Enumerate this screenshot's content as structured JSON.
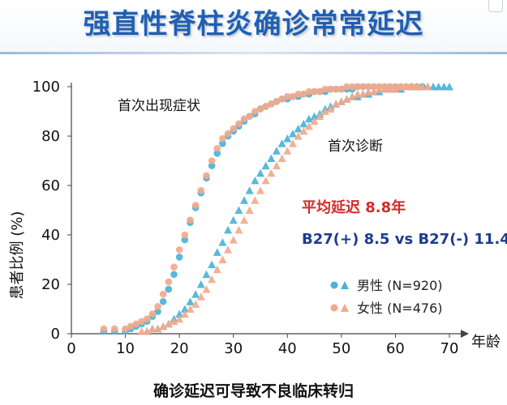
{
  "title": "强直性脊柱炎确诊常常延迟",
  "caption": "确诊延迟可导致不良临床转归",
  "chart_data": {
    "type": "scatter",
    "xlabel": "年龄",
    "ylabel": "患者比例 (%)",
    "xlim": [
      0,
      70
    ],
    "ylim": [
      0,
      100
    ],
    "xticks": [
      0,
      10,
      20,
      30,
      40,
      50,
      60,
      70
    ],
    "yticks": [
      0,
      20,
      40,
      60,
      80,
      100
    ],
    "grid": false,
    "legend": {
      "placement": "bottom-right",
      "entries": [
        "男性 (N=920)",
        "女性 (N=476)"
      ]
    },
    "annotations": {
      "onset": "首次出现症状",
      "diagnosis": "首次诊断",
      "delay": "平均延迟 8.8年",
      "b27": "B27(+) 8.5 vs B27(-) 11.4"
    },
    "colors": {
      "male_onset": "#49b3d8",
      "female_onset": "#f2a98c",
      "male_diagnosis": "#49b3d8",
      "female_diagnosis": "#f2a98c",
      "delay_text": "#d42b2b",
      "b27_text": "#1d3c8f"
    },
    "series": [
      {
        "name": "男性 (N=920)",
        "group": "首次出现症状",
        "marker": "circle",
        "x": [
          6,
          8,
          10,
          11,
          12,
          13,
          14,
          15,
          16,
          17,
          18,
          19,
          20,
          21,
          22,
          23,
          24,
          25,
          26,
          27,
          28,
          29,
          30,
          31,
          32,
          33,
          34,
          35,
          36,
          37,
          38,
          39,
          40,
          41,
          42,
          43,
          44,
          45,
          46,
          47,
          48,
          49,
          50,
          51,
          52,
          53,
          54,
          55,
          56,
          57,
          58,
          59,
          60,
          61,
          62,
          63,
          64,
          65
        ],
        "y": [
          1,
          1,
          1,
          2,
          3,
          4,
          5,
          7,
          9,
          13,
          18,
          24,
          31,
          38,
          45,
          51,
          57,
          63,
          68,
          73,
          77,
          80,
          82,
          84,
          86,
          88,
          89,
          91,
          92,
          93,
          94,
          95,
          95,
          96,
          96,
          97,
          97,
          98,
          98,
          98,
          99,
          99,
          99,
          99,
          99,
          100,
          100,
          100,
          100,
          100,
          100,
          100,
          100,
          100,
          100,
          100,
          100,
          100
        ]
      },
      {
        "name": "女性 (N=476)",
        "group": "首次出现症状",
        "marker": "circle",
        "x": [
          6,
          8,
          10,
          11,
          12,
          13,
          14,
          15,
          16,
          17,
          18,
          19,
          20,
          21,
          22,
          23,
          24,
          25,
          26,
          27,
          28,
          29,
          30,
          31,
          32,
          33,
          34,
          35,
          36,
          37,
          38,
          39,
          40,
          41,
          42,
          43,
          44,
          45,
          46,
          47,
          48,
          49,
          50,
          51,
          52,
          53,
          54,
          55,
          56,
          57,
          58,
          59,
          60,
          61,
          62,
          63,
          64
        ],
        "y": [
          2,
          2,
          2,
          3,
          4,
          5,
          6,
          8,
          11,
          16,
          21,
          27,
          34,
          40,
          46,
          52,
          58,
          64,
          70,
          75,
          79,
          81,
          83,
          85,
          87,
          88,
          90,
          91,
          92,
          93,
          94,
          95,
          96,
          96,
          97,
          97,
          98,
          98,
          98,
          99,
          99,
          99,
          99,
          100,
          100,
          100,
          100,
          100,
          100,
          100,
          100,
          100,
          100,
          100,
          100,
          100,
          100
        ]
      },
      {
        "name": "男性 (N=920)",
        "group": "首次诊断",
        "marker": "triangle",
        "x": [
          14,
          15,
          16,
          17,
          18,
          19,
          20,
          21,
          22,
          23,
          24,
          25,
          26,
          27,
          28,
          29,
          30,
          31,
          32,
          33,
          34,
          35,
          36,
          37,
          38,
          39,
          40,
          41,
          42,
          43,
          44,
          45,
          46,
          47,
          48,
          49,
          50,
          51,
          52,
          53,
          54,
          55,
          56,
          57,
          58,
          59,
          60,
          61,
          62,
          63,
          64,
          65,
          66,
          67,
          68,
          69,
          70
        ],
        "y": [
          1,
          2,
          2,
          3,
          4,
          6,
          8,
          10,
          13,
          16,
          20,
          24,
          28,
          33,
          37,
          42,
          46,
          50,
          54,
          58,
          62,
          65,
          68,
          71,
          74,
          77,
          79,
          81,
          83,
          85,
          87,
          88,
          89,
          91,
          92,
          93,
          94,
          95,
          96,
          96,
          97,
          97,
          98,
          98,
          99,
          99,
          99,
          99,
          100,
          100,
          100,
          100,
          100,
          100,
          100,
          100,
          100
        ]
      },
      {
        "name": "女性 (N=476)",
        "group": "首次诊断",
        "marker": "triangle",
        "x": [
          13,
          14,
          15,
          16,
          17,
          18,
          19,
          20,
          21,
          22,
          23,
          24,
          25,
          26,
          27,
          28,
          29,
          30,
          31,
          32,
          33,
          34,
          35,
          36,
          37,
          38,
          39,
          40,
          41,
          42,
          43,
          44,
          45,
          46,
          47,
          48,
          49,
          50,
          51,
          52,
          53,
          54,
          55,
          56,
          57,
          58,
          59,
          60,
          61,
          62,
          63,
          64,
          65,
          66
        ],
        "y": [
          1,
          1,
          2,
          2,
          3,
          4,
          5,
          6,
          8,
          10,
          12,
          15,
          18,
          22,
          26,
          30,
          34,
          38,
          42,
          46,
          50,
          54,
          58,
          62,
          65,
          68,
          71,
          74,
          77,
          80,
          82,
          84,
          86,
          88,
          90,
          91,
          93,
          94,
          95,
          96,
          97,
          97,
          98,
          98,
          99,
          99,
          99,
          99,
          100,
          100,
          100,
          100,
          100,
          100
        ]
      }
    ]
  }
}
